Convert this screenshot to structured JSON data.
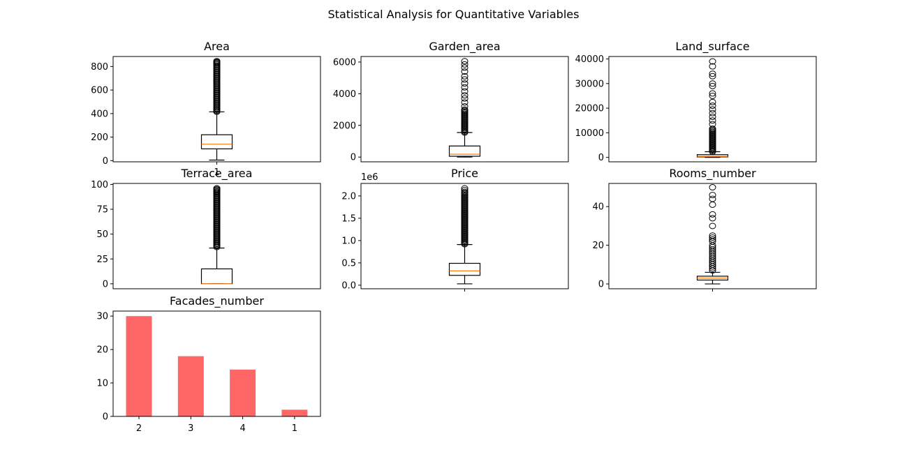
{
  "figure": {
    "suptitle": "Statistical Analysis for Quantitative Variables"
  },
  "chart_data": [
    {
      "id": "area",
      "type": "boxplot",
      "title": "Area",
      "xlabel": "",
      "ylabel": "",
      "ylim": [
        -10,
        885
      ],
      "yticks": [
        0,
        200,
        400,
        600,
        800
      ],
      "ytick_labels": [
        "0",
        "200",
        "400",
        "600",
        "800"
      ],
      "xticks": [
        "1"
      ],
      "box": {
        "whisker_low": 5,
        "q1": 100,
        "median": 140,
        "q3": 220,
        "whisker_high": 415
      },
      "outlier_range": [
        415,
        845
      ],
      "outliers": [
        845,
        835,
        825
      ],
      "grid": false
    },
    {
      "id": "garden_area",
      "type": "boxplot",
      "title": "Garden_area",
      "xlabel": "",
      "ylabel": "",
      "ylim": [
        -300,
        6350
      ],
      "yticks": [
        0,
        2000,
        4000,
        6000
      ],
      "ytick_labels": [
        "0",
        "2000",
        "4000",
        "6000"
      ],
      "xticks": [],
      "box": {
        "whisker_low": 0,
        "q1": 50,
        "median": 180,
        "q3": 700,
        "whisker_high": 1550
      },
      "outlier_range": [
        1550,
        3000
      ],
      "outliers": [
        3200,
        3450,
        3700,
        3900,
        4150,
        4400,
        4650,
        4900,
        5100,
        5400,
        5650,
        5850,
        6050
      ],
      "grid": false
    },
    {
      "id": "land_surface",
      "type": "boxplot",
      "title": "Land_surface",
      "xlabel": "",
      "ylabel": "",
      "ylim": [
        -1800,
        41000
      ],
      "yticks": [
        0,
        10000,
        20000,
        30000,
        40000
      ],
      "ytick_labels": [
        "0",
        "10000",
        "20000",
        "30000",
        "40000"
      ],
      "xticks": [],
      "box": {
        "whisker_low": 0,
        "q1": 200,
        "median": 400,
        "q3": 1100,
        "whisker_high": 2300
      },
      "outlier_range": [
        2300,
        12000
      ],
      "outliers": [
        13500,
        15000,
        16500,
        18000,
        19500,
        21000,
        22500,
        25000,
        26000,
        29000,
        30000,
        33000,
        34000,
        37000,
        39000
      ],
      "grid": false
    },
    {
      "id": "terrace_area",
      "type": "boxplot",
      "title": "Terrace_area",
      "xlabel": "",
      "ylabel": "",
      "ylim": [
        -5,
        101
      ],
      "yticks": [
        0,
        25,
        50,
        75,
        100
      ],
      "ytick_labels": [
        "0",
        "25",
        "50",
        "75",
        "100"
      ],
      "xticks": [],
      "box": {
        "whisker_low": 0,
        "q1": 0,
        "median": 0,
        "q3": 15,
        "whisker_high": 36
      },
      "outlier_range": [
        37,
        96
      ],
      "outliers": [
        96,
        94,
        92
      ],
      "grid": false
    },
    {
      "id": "price",
      "type": "boxplot",
      "title": "Price",
      "offset_text": "1e6",
      "xlabel": "",
      "ylabel": "",
      "ylim": [
        -0.08,
        2.28
      ],
      "yticks": [
        0.0,
        0.5,
        1.0,
        1.5,
        2.0
      ],
      "ytick_labels": [
        "0.0",
        "0.5",
        "1.0",
        "1.5",
        "2.0"
      ],
      "xticks": [
        ""
      ],
      "box": {
        "whisker_low": 0.03,
        "q1": 0.22,
        "median": 0.32,
        "q3": 0.49,
        "whisker_high": 0.91
      },
      "outlier_range": [
        0.92,
        2.1
      ],
      "outliers": [
        2.17,
        2.13
      ],
      "grid": false
    },
    {
      "id": "rooms_number",
      "type": "boxplot",
      "title": "Rooms_number",
      "xlabel": "",
      "ylabel": "",
      "ylim": [
        -2.5,
        52
      ],
      "yticks": [
        0,
        20,
        40
      ],
      "ytick_labels": [
        "0",
        "20",
        "40"
      ],
      "xticks": [
        ""
      ],
      "box": {
        "whisker_low": 0,
        "q1": 2,
        "median": 3,
        "q3": 4,
        "whisker_high": 6
      },
      "outlier_range": [
        null,
        null
      ],
      "outliers": [
        7,
        8,
        9,
        10,
        11,
        12,
        13,
        14,
        15,
        16,
        17,
        18,
        19,
        20,
        22,
        23,
        24,
        25,
        30,
        34,
        36,
        41,
        44,
        46,
        50
      ],
      "grid": false
    },
    {
      "id": "facades_number",
      "type": "bar",
      "title": "Facades_number",
      "xlabel": "",
      "ylabel": "",
      "categories": [
        "2",
        "3",
        "4",
        "1"
      ],
      "values": [
        30,
        18,
        14,
        2
      ],
      "ylim": [
        0,
        31.5
      ],
      "yticks": [
        0,
        10,
        20,
        30
      ],
      "ytick_labels": [
        "0",
        "10",
        "20",
        "30"
      ],
      "color": "#ff6666",
      "grid": false
    }
  ]
}
